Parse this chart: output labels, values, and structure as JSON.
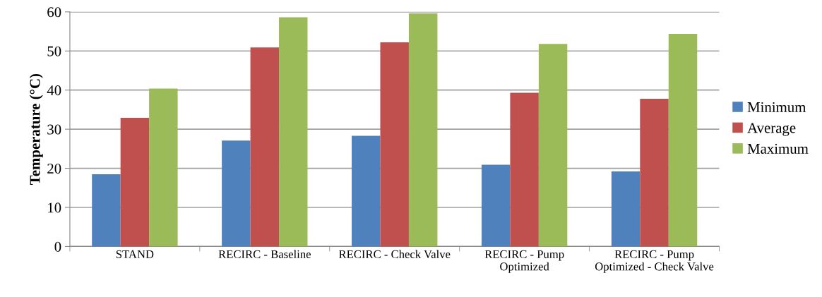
{
  "chart_data": {
    "type": "bar",
    "ylabel": "Temperature (°C)",
    "categories": [
      "STAND",
      "RECIRC - Baseline",
      "RECIRC - Check Valve",
      "RECIRC - Pump\nOptimized",
      "RECIRC - Pump\nOptimized - Check Valve"
    ],
    "series": [
      {
        "name": "Minimum",
        "color": "#4f81bd",
        "values": [
          18.5,
          27.1,
          28.3,
          20.9,
          19.2
        ]
      },
      {
        "name": "Average",
        "color": "#c0504d",
        "values": [
          32.9,
          50.9,
          52.2,
          39.3,
          37.8
        ]
      },
      {
        "name": "Maximum",
        "color": "#9bbb59",
        "values": [
          40.4,
          58.6,
          59.6,
          51.8,
          54.4
        ]
      }
    ],
    "ylim": [
      0,
      60
    ],
    "yticks": [
      0,
      10,
      20,
      30,
      40,
      50,
      60
    ],
    "grid": "y",
    "legend": "right"
  }
}
